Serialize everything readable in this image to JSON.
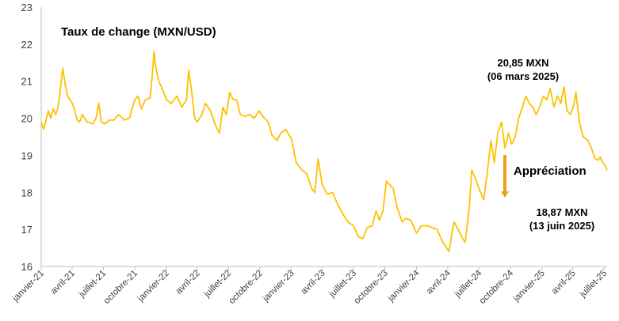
{
  "chart_data": {
    "type": "line",
    "title": "Taux de change (MXN/USD)",
    "xlabel": "",
    "ylabel": "",
    "ylim": [
      16,
      23
    ],
    "yticks": [
      "16",
      "17",
      "18",
      "19",
      "20",
      "21",
      "22",
      "23"
    ],
    "grid": false,
    "legend": "none",
    "colors": {
      "line": "#FFC000",
      "arrow": "#E8A317",
      "axis": "#bfbfbf",
      "text": "#404040"
    },
    "x_ticks": [
      {
        "label": "janvier-21",
        "date": "2021-01-01"
      },
      {
        "label": "avril-21",
        "date": "2021-04-01"
      },
      {
        "label": "juillet-21",
        "date": "2021-07-01"
      },
      {
        "label": "octobre-21",
        "date": "2021-10-01"
      },
      {
        "label": "janvier-22",
        "date": "2022-01-01"
      },
      {
        "label": "avril-22",
        "date": "2022-04-01"
      },
      {
        "label": "juillet-22",
        "date": "2022-07-01"
      },
      {
        "label": "octobre-22",
        "date": "2022-10-01"
      },
      {
        "label": "janvier-23",
        "date": "2023-01-01"
      },
      {
        "label": "avril-23",
        "date": "2023-04-01"
      },
      {
        "label": "juillet-23",
        "date": "2023-07-01"
      },
      {
        "label": "octobre-23",
        "date": "2023-10-01"
      },
      {
        "label": "janvier-24",
        "date": "2024-01-01"
      },
      {
        "label": "avril-24",
        "date": "2024-04-01"
      },
      {
        "label": "juillet-24",
        "date": "2024-07-01"
      },
      {
        "label": "octobre-24",
        "date": "2024-10-01"
      },
      {
        "label": "janvier-25",
        "date": "2025-01-01"
      },
      {
        "label": "avril-25",
        "date": "2025-04-01"
      },
      {
        "label": "juillet-25",
        "date": "2025-07-01"
      }
    ],
    "x_domain": [
      "2021-01-01",
      "2025-07-10"
    ],
    "series": [
      {
        "points": [
          [
            "2021-01-01",
            19.9
          ],
          [
            "2021-01-08",
            19.7
          ],
          [
            "2021-01-15",
            19.95
          ],
          [
            "2021-01-22",
            20.2
          ],
          [
            "2021-01-29",
            20.0
          ],
          [
            "2021-02-05",
            20.25
          ],
          [
            "2021-02-12",
            20.1
          ],
          [
            "2021-02-19",
            20.3
          ],
          [
            "2021-02-26",
            20.8
          ],
          [
            "2021-03-05",
            21.35
          ],
          [
            "2021-03-12",
            20.9
          ],
          [
            "2021-03-19",
            20.6
          ],
          [
            "2021-03-26",
            20.5
          ],
          [
            "2021-04-02",
            20.4
          ],
          [
            "2021-04-09",
            20.2
          ],
          [
            "2021-04-16",
            19.95
          ],
          [
            "2021-04-23",
            19.9
          ],
          [
            "2021-05-01",
            20.1
          ],
          [
            "2021-05-15",
            19.9
          ],
          [
            "2021-06-01",
            19.85
          ],
          [
            "2021-06-10",
            20.0
          ],
          [
            "2021-06-18",
            20.4
          ],
          [
            "2021-06-25",
            19.9
          ],
          [
            "2021-07-05",
            19.85
          ],
          [
            "2021-07-20",
            19.95
          ],
          [
            "2021-08-01",
            19.95
          ],
          [
            "2021-08-15",
            20.1
          ],
          [
            "2021-09-01",
            19.95
          ],
          [
            "2021-09-15",
            20.0
          ],
          [
            "2021-10-01",
            20.5
          ],
          [
            "2021-10-10",
            20.6
          ],
          [
            "2021-10-20",
            20.25
          ],
          [
            "2021-11-01",
            20.5
          ],
          [
            "2021-11-15",
            20.55
          ],
          [
            "2021-11-22",
            21.3
          ],
          [
            "2021-11-26",
            21.8
          ],
          [
            "2021-12-01",
            21.4
          ],
          [
            "2021-12-10",
            21.0
          ],
          [
            "2021-12-20",
            20.8
          ],
          [
            "2022-01-01",
            20.5
          ],
          [
            "2022-01-15",
            20.4
          ],
          [
            "2022-02-01",
            20.6
          ],
          [
            "2022-02-15",
            20.3
          ],
          [
            "2022-03-01",
            20.5
          ],
          [
            "2022-03-07",
            21.3
          ],
          [
            "2022-03-15",
            20.8
          ],
          [
            "2022-03-25",
            20.0
          ],
          [
            "2022-04-01",
            19.9
          ],
          [
            "2022-04-15",
            20.1
          ],
          [
            "2022-04-25",
            20.4
          ],
          [
            "2022-05-10",
            20.2
          ],
          [
            "2022-05-25",
            19.8
          ],
          [
            "2022-06-05",
            19.6
          ],
          [
            "2022-06-15",
            20.3
          ],
          [
            "2022-06-25",
            20.1
          ],
          [
            "2022-07-05",
            20.7
          ],
          [
            "2022-07-15",
            20.5
          ],
          [
            "2022-07-25",
            20.5
          ],
          [
            "2022-08-05",
            20.1
          ],
          [
            "2022-08-20",
            20.05
          ],
          [
            "2022-09-01",
            20.1
          ],
          [
            "2022-09-15",
            20.0
          ],
          [
            "2022-09-28",
            20.2
          ],
          [
            "2022-10-10",
            20.05
          ],
          [
            "2022-10-25",
            19.9
          ],
          [
            "2022-11-05",
            19.55
          ],
          [
            "2022-11-20",
            19.4
          ],
          [
            "2022-12-01",
            19.6
          ],
          [
            "2022-12-15",
            19.7
          ],
          [
            "2023-01-01",
            19.45
          ],
          [
            "2023-01-15",
            18.8
          ],
          [
            "2023-02-01",
            18.6
          ],
          [
            "2023-02-15",
            18.5
          ],
          [
            "2023-03-01",
            18.1
          ],
          [
            "2023-03-10",
            18.0
          ],
          [
            "2023-03-20",
            18.9
          ],
          [
            "2023-04-01",
            18.2
          ],
          [
            "2023-04-15",
            17.95
          ],
          [
            "2023-05-01",
            18.0
          ],
          [
            "2023-05-15",
            17.7
          ],
          [
            "2023-06-01",
            17.4
          ],
          [
            "2023-06-15",
            17.2
          ],
          [
            "2023-07-01",
            17.1
          ],
          [
            "2023-07-15",
            16.8
          ],
          [
            "2023-07-28",
            16.75
          ],
          [
            "2023-08-10",
            17.05
          ],
          [
            "2023-08-25",
            17.1
          ],
          [
            "2023-09-05",
            17.5
          ],
          [
            "2023-09-15",
            17.25
          ],
          [
            "2023-09-25",
            17.5
          ],
          [
            "2023-10-05",
            18.3
          ],
          [
            "2023-10-15",
            18.2
          ],
          [
            "2023-10-25",
            18.1
          ],
          [
            "2023-11-05",
            17.6
          ],
          [
            "2023-11-20",
            17.2
          ],
          [
            "2023-12-01",
            17.3
          ],
          [
            "2023-12-15",
            17.25
          ],
          [
            "2024-01-01",
            16.9
          ],
          [
            "2024-01-15",
            17.1
          ],
          [
            "2024-02-01",
            17.1
          ],
          [
            "2024-02-15",
            17.05
          ],
          [
            "2024-03-01",
            17.0
          ],
          [
            "2024-03-15",
            16.7
          ],
          [
            "2024-03-25",
            16.55
          ],
          [
            "2024-04-05",
            16.4
          ],
          [
            "2024-04-15",
            17.0
          ],
          [
            "2024-04-20",
            17.2
          ],
          [
            "2024-05-01",
            17.0
          ],
          [
            "2024-05-15",
            16.75
          ],
          [
            "2024-05-22",
            16.65
          ],
          [
            "2024-06-03",
            17.6
          ],
          [
            "2024-06-10",
            18.6
          ],
          [
            "2024-06-20",
            18.4
          ],
          [
            "2024-07-01",
            18.1
          ],
          [
            "2024-07-15",
            17.8
          ],
          [
            "2024-07-25",
            18.5
          ],
          [
            "2024-08-05",
            19.4
          ],
          [
            "2024-08-15",
            18.8
          ],
          [
            "2024-08-25",
            19.6
          ],
          [
            "2024-09-05",
            19.9
          ],
          [
            "2024-09-15",
            19.2
          ],
          [
            "2024-09-25",
            19.6
          ],
          [
            "2024-10-05",
            19.3
          ],
          [
            "2024-10-15",
            19.5
          ],
          [
            "2024-10-25",
            20.0
          ],
          [
            "2024-11-05",
            20.3
          ],
          [
            "2024-11-15",
            20.6
          ],
          [
            "2024-11-25",
            20.4
          ],
          [
            "2024-12-05",
            20.3
          ],
          [
            "2024-12-15",
            20.1
          ],
          [
            "2024-12-25",
            20.3
          ],
          [
            "2025-01-05",
            20.6
          ],
          [
            "2025-01-15",
            20.5
          ],
          [
            "2025-01-25",
            20.8
          ],
          [
            "2025-02-05",
            20.3
          ],
          [
            "2025-02-15",
            20.6
          ],
          [
            "2025-02-25",
            20.4
          ],
          [
            "2025-03-06",
            20.85
          ],
          [
            "2025-03-15",
            20.2
          ],
          [
            "2025-03-25",
            20.1
          ],
          [
            "2025-04-05",
            20.4
          ],
          [
            "2025-04-10",
            20.7
          ],
          [
            "2025-04-20",
            19.9
          ],
          [
            "2025-05-01",
            19.5
          ],
          [
            "2025-05-15",
            19.4
          ],
          [
            "2025-05-25",
            19.2
          ],
          [
            "2025-06-05",
            18.9
          ],
          [
            "2025-06-13",
            18.87
          ],
          [
            "2025-06-20",
            18.95
          ],
          [
            "2025-06-28",
            18.8
          ],
          [
            "2025-07-05",
            18.7
          ],
          [
            "2025-07-10",
            18.6
          ]
        ]
      }
    ],
    "annotations": [
      {
        "line1": "20,85 MXN",
        "line2": "(06 mars 2025)"
      },
      {
        "text": "Appréciation"
      },
      {
        "line1": "18,87 MXN",
        "line2": "(13 juin 2025)"
      }
    ]
  }
}
